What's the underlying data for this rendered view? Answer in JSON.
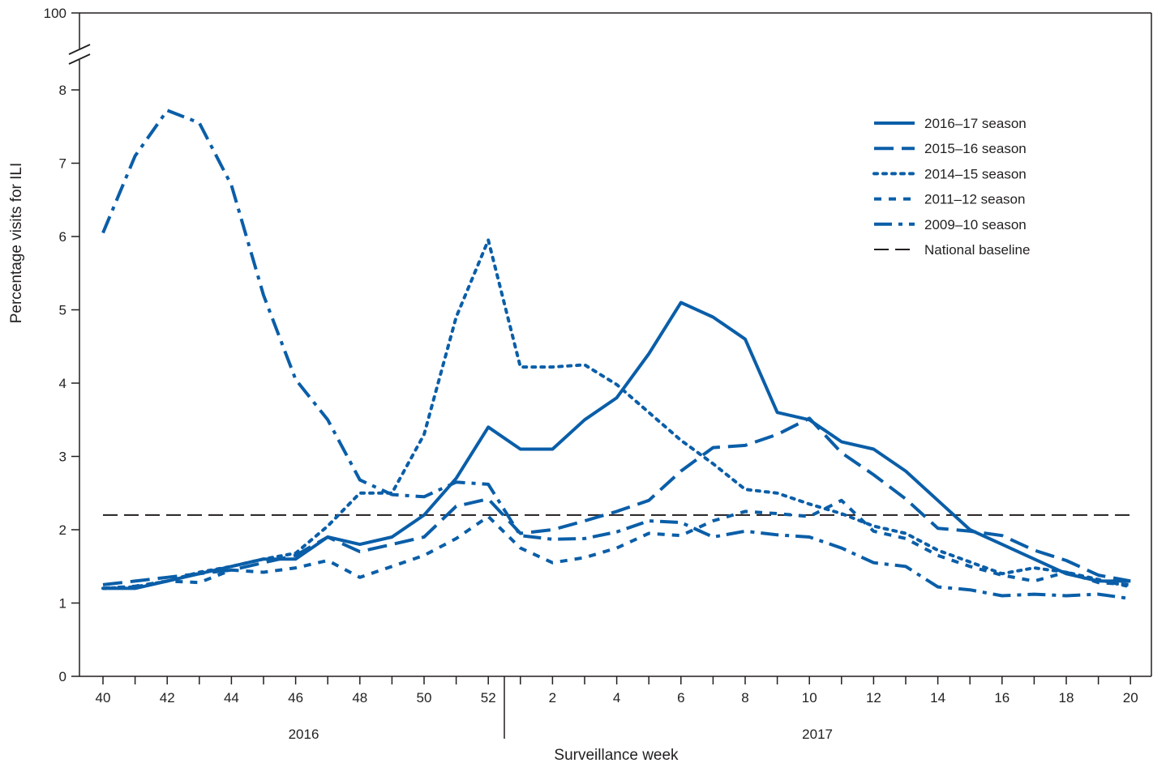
{
  "chart_data": {
    "type": "line",
    "xlabel": "Surveillance week",
    "ylabel": "Percentage visits for ILI",
    "ylim": [
      0,
      8
    ],
    "y_ticks": [
      "0",
      "1",
      "2",
      "3",
      "4",
      "5",
      "6",
      "7",
      "8"
    ],
    "y_break_label": "100",
    "y_axis_break": true,
    "x_weeks": [
      40,
      41,
      42,
      43,
      44,
      45,
      46,
      47,
      48,
      49,
      50,
      51,
      52,
      1,
      2,
      3,
      4,
      5,
      6,
      7,
      8,
      9,
      10,
      11,
      12,
      13,
      14,
      15,
      16,
      17,
      18,
      19,
      20
    ],
    "x_tick_labels": [
      "40",
      "42",
      "44",
      "46",
      "48",
      "50",
      "52",
      "2",
      "4",
      "6",
      "8",
      "10",
      "12",
      "14",
      "16",
      "18",
      "20"
    ],
    "year_labels": [
      "2016",
      "2017"
    ],
    "legend_position": "top-right",
    "colors": {
      "series": "#0a5ea8",
      "baseline": "#231f20",
      "axis": "#231f20"
    },
    "series": [
      {
        "name": "2016–17 season",
        "style": "solid",
        "values": [
          1.2,
          1.2,
          1.3,
          1.4,
          1.5,
          1.6,
          1.6,
          1.9,
          1.8,
          1.9,
          2.2,
          2.7,
          3.4,
          3.1,
          3.1,
          3.5,
          3.8,
          4.4,
          5.1,
          4.9,
          4.6,
          3.6,
          3.5,
          3.2,
          3.1,
          2.8,
          2.4,
          2.0,
          1.8,
          1.6,
          1.4,
          1.3,
          1.3
        ]
      },
      {
        "name": "2015–16 season",
        "style": "dash",
        "values": [
          1.25,
          1.3,
          1.35,
          1.4,
          1.45,
          1.55,
          1.65,
          1.9,
          1.7,
          1.8,
          1.9,
          2.32,
          2.42,
          1.95,
          2.0,
          2.12,
          2.25,
          2.4,
          2.8,
          3.12,
          3.15,
          3.3,
          3.52,
          3.05,
          2.75,
          2.42,
          2.02,
          1.98,
          1.92,
          1.72,
          1.58,
          1.38,
          1.3
        ]
      },
      {
        "name": "2014–15 season",
        "style": "dot",
        "values": [
          1.2,
          1.22,
          1.3,
          1.42,
          1.5,
          1.6,
          1.68,
          2.05,
          2.5,
          2.5,
          3.3,
          4.9,
          5.95,
          4.22,
          4.22,
          4.25,
          3.98,
          3.6,
          3.22,
          2.9,
          2.55,
          2.5,
          2.35,
          2.22,
          2.05,
          1.95,
          1.72,
          1.56,
          1.4,
          1.48,
          1.42,
          1.32,
          1.22
        ]
      },
      {
        "name": "2011–12 season",
        "style": "short-dash",
        "values": [
          1.2,
          1.23,
          1.3,
          1.28,
          1.45,
          1.42,
          1.48,
          1.58,
          1.35,
          1.5,
          1.65,
          1.88,
          2.18,
          1.75,
          1.55,
          1.62,
          1.75,
          1.95,
          1.92,
          2.12,
          2.25,
          2.22,
          2.18,
          2.4,
          1.98,
          1.88,
          1.65,
          1.5,
          1.38,
          1.3,
          1.42,
          1.28,
          1.25
        ]
      },
      {
        "name": "2009–10 season",
        "style": "dash-dot",
        "values": [
          6.05,
          7.1,
          7.72,
          7.55,
          6.7,
          5.2,
          4.05,
          3.5,
          2.68,
          2.48,
          2.45,
          2.65,
          2.62,
          1.92,
          1.87,
          1.88,
          1.97,
          2.12,
          2.1,
          1.9,
          1.98,
          1.93,
          1.9,
          1.75,
          1.55,
          1.5,
          1.22,
          1.18,
          1.1,
          1.12,
          1.1,
          1.12,
          1.06
        ]
      },
      {
        "name": "National baseline",
        "style": "long-dash",
        "values": [
          2.2,
          2.2,
          2.2,
          2.2,
          2.2,
          2.2,
          2.2,
          2.2,
          2.2,
          2.2,
          2.2,
          2.2,
          2.2,
          2.2,
          2.2,
          2.2,
          2.2,
          2.2,
          2.2,
          2.2,
          2.2,
          2.2,
          2.2,
          2.2,
          2.2,
          2.2,
          2.2,
          2.2,
          2.2,
          2.2,
          2.2,
          2.2,
          2.2
        ]
      }
    ]
  }
}
